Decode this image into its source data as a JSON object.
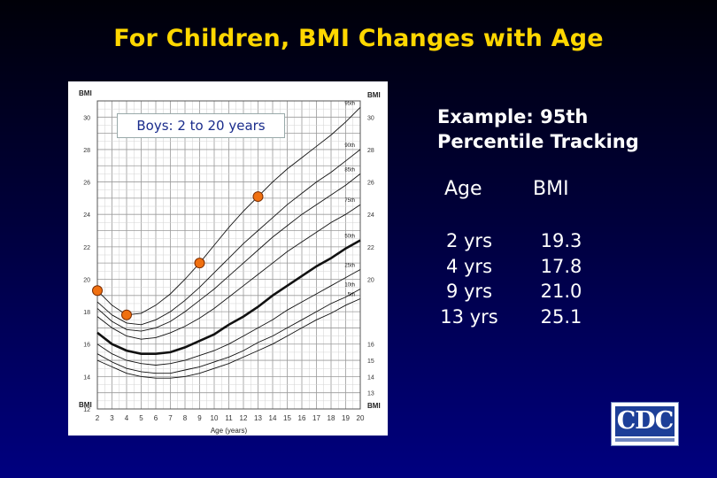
{
  "slide": {
    "title": "For Children, BMI Changes with Age"
  },
  "example": {
    "heading_line1": "Example: 95th",
    "heading_line2": "Percentile Tracking",
    "col_age": "Age",
    "col_bmi": "BMI",
    "rows": [
      {
        "age": "2 yrs",
        "bmi": "19.3"
      },
      {
        "age": "4 yrs",
        "bmi": "17.8"
      },
      {
        "age": "9 yrs",
        "bmi": "21.0"
      },
      {
        "age": "13 yrs",
        "bmi": "25.1"
      }
    ]
  },
  "logo": {
    "text": "CDC"
  },
  "chart_data": {
    "type": "line",
    "subtitle": "Boys: 2 to 20 years",
    "xlabel": "Age (years)",
    "ylabel": "BMI",
    "ylabel_right": "BMI",
    "xlim": [
      2,
      20
    ],
    "ylim": [
      12,
      31
    ],
    "x_ticks": [
      2,
      3,
      4,
      5,
      6,
      7,
      8,
      9,
      10,
      11,
      12,
      13,
      14,
      15,
      16,
      17,
      18,
      19,
      20
    ],
    "y_ticks_left": [
      12,
      14,
      16,
      18,
      20,
      22,
      24,
      26,
      28,
      30
    ],
    "y_ticks_right": [
      13,
      14,
      15,
      16,
      20,
      22,
      24,
      26,
      28,
      30
    ],
    "grid": true,
    "curve_labels": [
      "95th",
      "90th",
      "85th",
      "75th",
      "50th",
      "25th",
      "10th",
      "5th"
    ],
    "series": [
      {
        "name": "95th",
        "x": [
          2,
          3,
          4,
          5,
          6,
          7,
          8,
          9,
          10,
          11,
          12,
          13,
          14,
          15,
          16,
          17,
          18,
          19,
          20
        ],
        "y": [
          19.3,
          18.4,
          17.8,
          17.9,
          18.4,
          19.1,
          20.0,
          21.0,
          22.1,
          23.2,
          24.2,
          25.1,
          26.0,
          26.8,
          27.5,
          28.2,
          28.9,
          29.7,
          30.6
        ]
      },
      {
        "name": "90th",
        "x": [
          2,
          3,
          4,
          5,
          6,
          7,
          8,
          9,
          10,
          11,
          12,
          13,
          14,
          15,
          16,
          17,
          18,
          19,
          20
        ],
        "y": [
          18.6,
          17.8,
          17.3,
          17.2,
          17.5,
          18.0,
          18.7,
          19.5,
          20.4,
          21.3,
          22.2,
          23.0,
          23.8,
          24.6,
          25.3,
          26.0,
          26.6,
          27.3,
          28.0
        ]
      },
      {
        "name": "85th",
        "x": [
          2,
          3,
          4,
          5,
          6,
          7,
          8,
          9,
          10,
          11,
          12,
          13,
          14,
          15,
          16,
          17,
          18,
          19,
          20
        ],
        "y": [
          18.2,
          17.4,
          16.9,
          16.8,
          17.0,
          17.4,
          18.0,
          18.7,
          19.4,
          20.2,
          21.0,
          21.8,
          22.6,
          23.3,
          24.0,
          24.6,
          25.2,
          25.8,
          26.5
        ]
      },
      {
        "name": "75th",
        "x": [
          2,
          3,
          4,
          5,
          6,
          7,
          8,
          9,
          10,
          11,
          12,
          13,
          14,
          15,
          16,
          17,
          18,
          19,
          20
        ],
        "y": [
          17.7,
          17.0,
          16.5,
          16.3,
          16.4,
          16.7,
          17.1,
          17.6,
          18.2,
          18.9,
          19.6,
          20.3,
          21.0,
          21.7,
          22.3,
          22.9,
          23.5,
          24.0,
          24.6
        ]
      },
      {
        "name": "50th",
        "x": [
          2,
          3,
          4,
          5,
          6,
          7,
          8,
          9,
          10,
          11,
          12,
          13,
          14,
          15,
          16,
          17,
          18,
          19,
          20
        ],
        "y": [
          16.7,
          16.0,
          15.6,
          15.4,
          15.4,
          15.5,
          15.8,
          16.2,
          16.6,
          17.2,
          17.7,
          18.3,
          19.0,
          19.6,
          20.2,
          20.8,
          21.3,
          21.9,
          22.4
        ]
      },
      {
        "name": "25th",
        "x": [
          2,
          3,
          4,
          5,
          6,
          7,
          8,
          9,
          10,
          11,
          12,
          13,
          14,
          15,
          16,
          17,
          18,
          19,
          20
        ],
        "y": [
          16.0,
          15.4,
          15.0,
          14.8,
          14.7,
          14.8,
          15.0,
          15.3,
          15.6,
          16.0,
          16.5,
          17.0,
          17.5,
          18.1,
          18.6,
          19.1,
          19.6,
          20.1,
          20.6
        ]
      },
      {
        "name": "10th",
        "x": [
          2,
          3,
          4,
          5,
          6,
          7,
          8,
          9,
          10,
          11,
          12,
          13,
          14,
          15,
          16,
          17,
          18,
          19,
          20
        ],
        "y": [
          15.4,
          14.9,
          14.5,
          14.3,
          14.2,
          14.2,
          14.4,
          14.6,
          14.9,
          15.2,
          15.6,
          16.1,
          16.5,
          17.0,
          17.5,
          18.0,
          18.5,
          18.9,
          19.4
        ]
      },
      {
        "name": "5th",
        "x": [
          2,
          3,
          4,
          5,
          6,
          7,
          8,
          9,
          10,
          11,
          12,
          13,
          14,
          15,
          16,
          17,
          18,
          19,
          20
        ],
        "y": [
          15.0,
          14.6,
          14.2,
          14.0,
          13.9,
          13.9,
          14.0,
          14.2,
          14.5,
          14.8,
          15.2,
          15.6,
          16.0,
          16.5,
          17.0,
          17.5,
          17.9,
          18.4,
          18.8
        ]
      }
    ],
    "highlighted_series": "50th",
    "tracking_points": {
      "x": [
        2,
        4,
        9,
        13
      ],
      "y": [
        19.3,
        17.8,
        21.0,
        25.1
      ],
      "color": "#f07010"
    }
  }
}
